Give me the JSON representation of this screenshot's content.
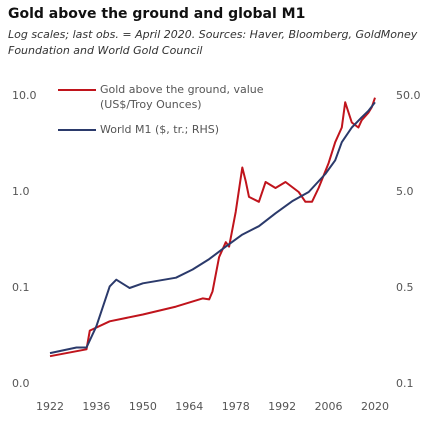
{
  "chart_data": {
    "type": "line",
    "title": "Gold above the ground  and global M1",
    "subtitle": "Log scales; last obs. = April 2020. Sources: Haver, Bloomberg, GoldMoney Foundation and World Gold Council",
    "log_scale": true,
    "grid": false,
    "legend": "top-left",
    "xlim": [
      1922,
      2020
    ],
    "xticks": [
      1922,
      1936,
      1950,
      1964,
      1978,
      1992,
      2006,
      2020
    ],
    "ylim": [
      0.01,
      10
    ],
    "yticks": [
      {
        "value": 0.01,
        "label": "0.0"
      },
      0.1,
      {
        "value": 1,
        "label": "1.0"
      },
      {
        "value": 10,
        "label": "10.0"
      }
    ],
    "y2lim": [
      0.05,
      50
    ],
    "y2ticks": [
      {
        "value": 0.05,
        "label": "0.1"
      },
      0.5,
      {
        "value": 5,
        "label": "5.0"
      },
      {
        "value": 50,
        "label": "50.0"
      }
    ],
    "series": [
      {
        "name": "Gold above the ground, value (US$/Troy Ounces)",
        "color": "#c0141c",
        "x": [
          1922,
          1933,
          1934,
          1940,
          1950,
          1960,
          1968,
          1970,
          1971,
          1973,
          1975,
          1976,
          1978,
          1980,
          1981,
          1982,
          1985,
          1987,
          1990,
          1993,
          1997,
          1999,
          2001,
          2003,
          2006,
          2008,
          2010,
          2011,
          2013,
          2015,
          2016,
          2018,
          2019,
          2020
        ],
        "values": [
          0.0195,
          0.023,
          0.036,
          0.045,
          0.053,
          0.064,
          0.078,
          0.076,
          0.092,
          0.21,
          0.3,
          0.27,
          0.62,
          1.8,
          1.3,
          0.89,
          0.79,
          1.27,
          1.1,
          1.27,
          1.0,
          0.79,
          0.79,
          1.1,
          2.0,
          3.3,
          4.7,
          8.6,
          5.3,
          4.7,
          5.6,
          6.7,
          7.6,
          9.6
        ]
      },
      {
        "name": "World M1 ($, tr.; RHS)",
        "color": "#2b3a6b",
        "axis": "y2",
        "x": [
          1922,
          1930,
          1933,
          1936,
          1940,
          1942,
          1946,
          1950,
          1960,
          1965,
          1970,
          1975,
          1980,
          1985,
          1990,
          1995,
          2000,
          2005,
          2008,
          2010,
          2013,
          2016,
          2018,
          2020
        ],
        "values": [
          0.105,
          0.12,
          0.12,
          0.2,
          0.52,
          0.61,
          0.5,
          0.56,
          0.64,
          0.78,
          1.0,
          1.35,
          1.8,
          2.2,
          3.0,
          4.0,
          5.0,
          7.7,
          10.7,
          16.5,
          23.5,
          30,
          35,
          43
        ]
      }
    ]
  }
}
